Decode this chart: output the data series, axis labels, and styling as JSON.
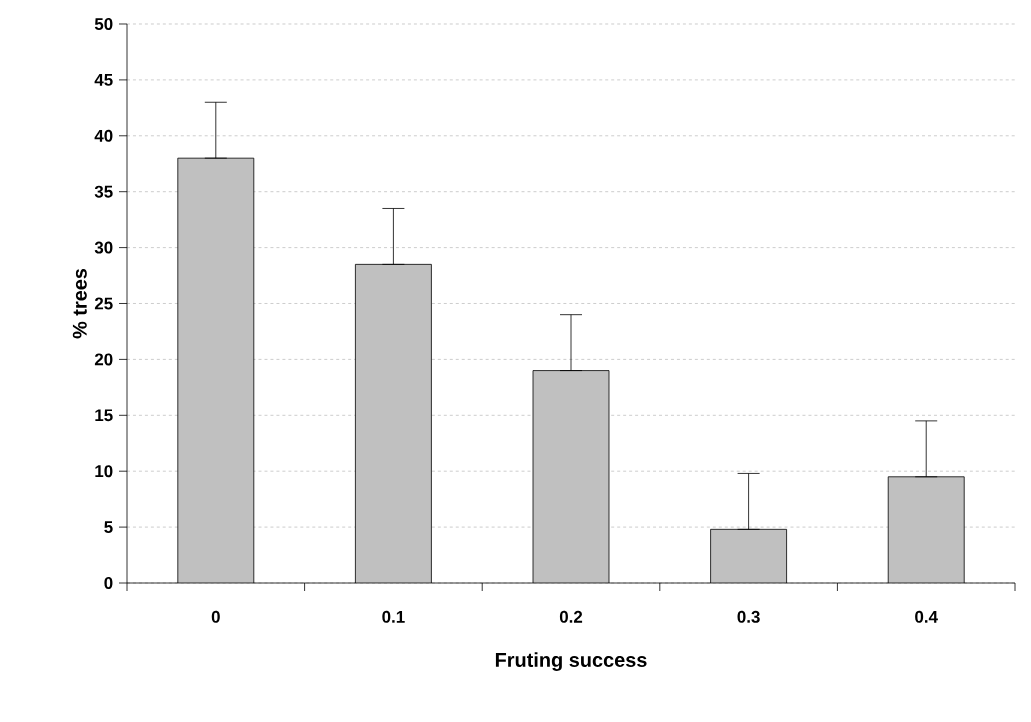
{
  "chart_data": {
    "type": "bar",
    "xlabel": "Fruting success",
    "ylabel": "% trees",
    "categories": [
      "0",
      "0.1",
      "0.2",
      "0.3",
      "0.4"
    ],
    "values": [
      38,
      28.5,
      19,
      4.8,
      9.5
    ],
    "errors": [
      [
        38,
        43
      ],
      [
        28.5,
        33.5
      ],
      [
        19,
        24
      ],
      [
        4.8,
        9.8
      ],
      [
        9.5,
        14.5
      ]
    ],
    "color": "#c0c0c0",
    "ylim": [
      0,
      50
    ],
    "yticks": [
      0,
      5,
      10,
      15,
      20,
      25,
      30,
      35,
      40,
      45,
      50
    ],
    "grid": "y"
  }
}
